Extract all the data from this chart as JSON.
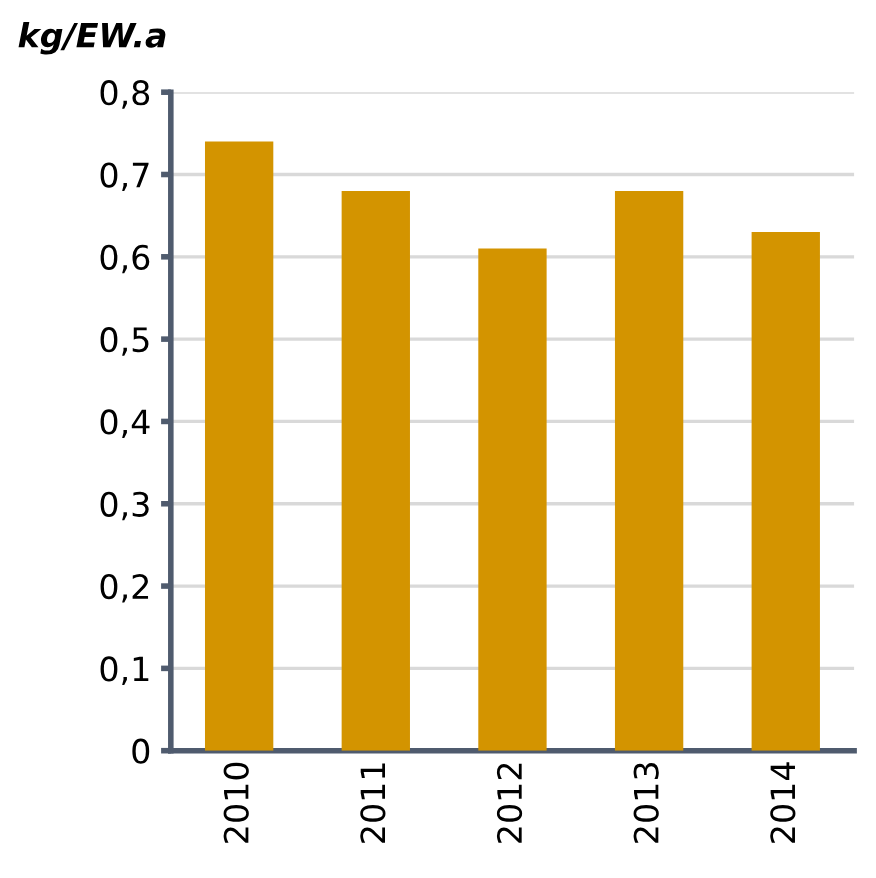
{
  "chart_data": {
    "type": "bar",
    "ylabel": "kg/EW.a",
    "categories": [
      "2010",
      "2011",
      "2012",
      "2013",
      "2014"
    ],
    "values": [
      0.74,
      0.68,
      0.61,
      0.68,
      0.63
    ],
    "color": "#d39400",
    "ylim": [
      0,
      0.8
    ],
    "yticks": [
      {
        "value": 0,
        "label": "0"
      },
      {
        "value": 0.1,
        "label": "0,1"
      },
      {
        "value": 0.2,
        "label": "0,2"
      },
      {
        "value": 0.3,
        "label": "0,3"
      },
      {
        "value": 0.4,
        "label": "0,4"
      },
      {
        "value": 0.5,
        "label": "0,5"
      },
      {
        "value": 0.6,
        "label": "0,6"
      },
      {
        "value": 0.7,
        "label": "0,7"
      },
      {
        "value": 0.8,
        "label": "0,8"
      }
    ],
    "grid": "y"
  }
}
